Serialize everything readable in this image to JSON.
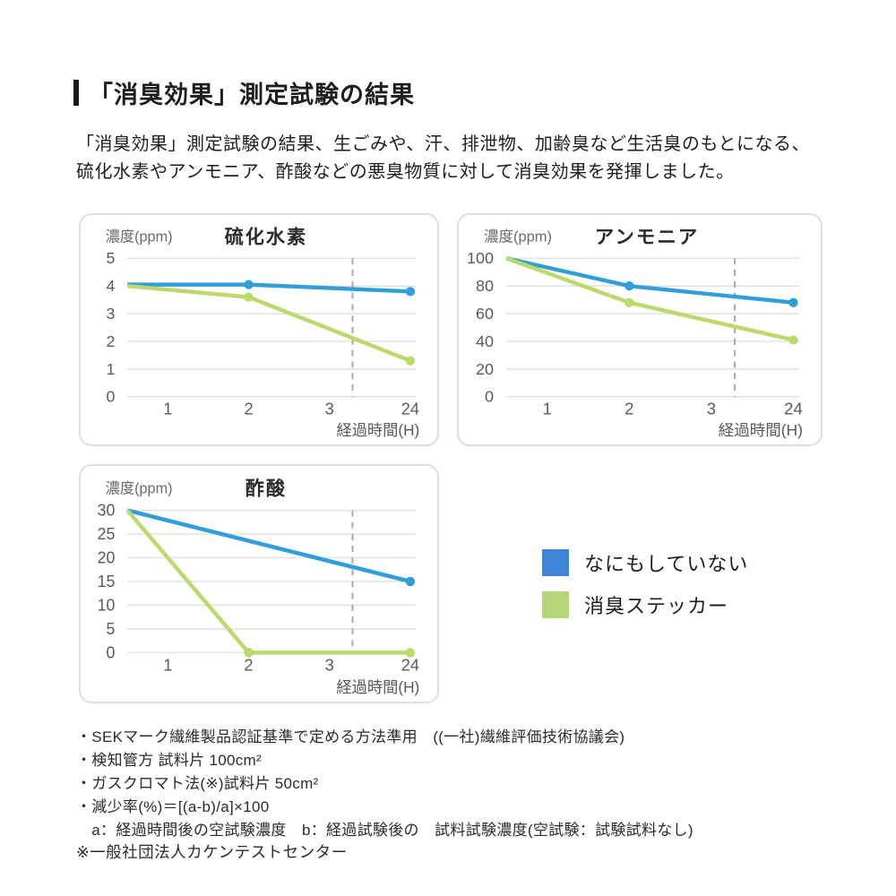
{
  "header": {
    "title": "「消臭効果」測定試験の結果",
    "description_lines": [
      "「消臭効果」測定試験の結果、生ごみや、汗、排泄物、加齢臭など生活臭のもとになる、",
      "硫化水素やアンモニア、酢酸などの悪臭物質に対して消臭効果を発揮しました。"
    ]
  },
  "colors": {
    "line_blue": "#2F9EDB",
    "line_green": "#BCD96B",
    "legend_blue": "#3E84D8",
    "legend_green": "#B6D678",
    "gridline": "#E4E4E4",
    "dashed_line": "#A9A9A9",
    "axis_text": "#5A5A5A",
    "axis_label_text": "#6A6A6A",
    "chart_title_text": "#2B2B2B",
    "card_border": "#DFDFDF"
  },
  "legend": {
    "items": [
      {
        "label": "なにもしていない",
        "color": "#3E84D8"
      },
      {
        "label": "消臭ステッカー",
        "color": "#B6D678"
      }
    ]
  },
  "chart_data": [
    {
      "type": "line",
      "title": "硫化水素",
      "ylabel": "濃度(ppm)",
      "xlabel": "経過時間(H)",
      "x_ticks": [
        1,
        2,
        3,
        24
      ],
      "y_ticks": [
        0,
        1,
        2,
        3,
        4,
        5
      ],
      "ylim": [
        0,
        5
      ],
      "x_axis_style": "categorical: ticks 1,2,3,24 evenly spaced, lines start at axis edge (x=0)",
      "dashed_vline": "between 3 and 24",
      "grid": true,
      "series": [
        {
          "name": "なにもしていない",
          "color": "#2F9EDB",
          "points": [
            {
              "x": 0,
              "y": 4.05,
              "marker": false
            },
            {
              "x": 2,
              "y": 4.05,
              "marker": true
            },
            {
              "x": 24,
              "y": 3.8,
              "marker": true
            }
          ]
        },
        {
          "name": "消臭ステッカー",
          "color": "#BCD96B",
          "points": [
            {
              "x": 0,
              "y": 4.0,
              "marker": false
            },
            {
              "x": 2,
              "y": 3.6,
              "marker": true
            },
            {
              "x": 24,
              "y": 1.3,
              "marker": true
            }
          ]
        }
      ]
    },
    {
      "type": "line",
      "title": "アンモニア",
      "ylabel": "濃度(ppm)",
      "xlabel": "経過時間(H)",
      "x_ticks": [
        1,
        2,
        3,
        24
      ],
      "y_ticks": [
        0,
        20,
        40,
        60,
        80,
        100
      ],
      "ylim": [
        0,
        100
      ],
      "x_axis_style": "categorical: ticks 1,2,3,24 evenly spaced, lines start at axis edge (x=0)",
      "dashed_vline": "between 3 and 24",
      "grid": true,
      "series": [
        {
          "name": "なにもしていない",
          "color": "#2F9EDB",
          "points": [
            {
              "x": 0,
              "y": 100,
              "marker": false
            },
            {
              "x": 2,
              "y": 80,
              "marker": true
            },
            {
              "x": 24,
              "y": 68,
              "marker": true
            }
          ]
        },
        {
          "name": "消臭ステッカー",
          "color": "#BCD96B",
          "points": [
            {
              "x": 0,
              "y": 100,
              "marker": false
            },
            {
              "x": 2,
              "y": 68,
              "marker": true
            },
            {
              "x": 24,
              "y": 41,
              "marker": true
            }
          ]
        }
      ]
    },
    {
      "type": "line",
      "title": "酢酸",
      "ylabel": "濃度(ppm)",
      "xlabel": "経過時間(H)",
      "x_ticks": [
        1,
        2,
        3,
        24
      ],
      "y_ticks": [
        0,
        5,
        10,
        15,
        20,
        25,
        30
      ],
      "ylim": [
        0,
        30
      ],
      "x_axis_style": "categorical: ticks 1,2,3,24 evenly spaced, lines start at axis edge (x=0)",
      "dashed_vline": "between 3 and 24",
      "grid": true,
      "series": [
        {
          "name": "なにもしていない",
          "color": "#2F9EDB",
          "points": [
            {
              "x": 0,
              "y": 30,
              "marker": false
            },
            {
              "x": 24,
              "y": 15,
              "marker": true
            }
          ]
        },
        {
          "name": "消臭ステッカー",
          "color": "#BCD96B",
          "points": [
            {
              "x": 0,
              "y": 30,
              "marker": false
            },
            {
              "x": 2,
              "y": 0,
              "marker": true
            },
            {
              "x": 24,
              "y": 0,
              "marker": true
            }
          ]
        }
      ]
    }
  ],
  "footnotes": [
    "・SEKマーク繊維製品認証基準で定める方法準用　((一社)繊維評価技術協議会)",
    "・検知管方 試料片 100cm²",
    "・ガスクロマト法(※)試料片 50cm²",
    "・減少率(%)＝[(a-b)/a]×100",
    "　a：経過時間後の空試験濃度　b：経過試験後の　試料試験濃度(空試験：試験試料なし)"
  ],
  "final_note": "※一般社団法人カケンテストセンター"
}
